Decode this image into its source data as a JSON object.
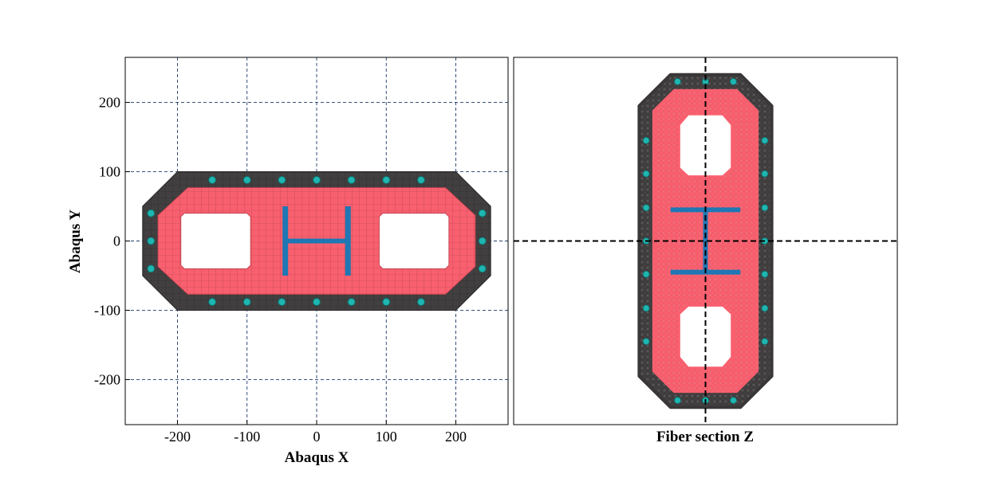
{
  "chart_data": [
    {
      "type": "scatter",
      "panel": "abaqus-mesh",
      "xlabel": "Abaqus X",
      "ylabel": "Abaqus Y",
      "xlim": [
        -275,
        275
      ],
      "ylim": [
        -265,
        265
      ],
      "xticks": [
        -200,
        -100,
        0,
        100,
        200
      ],
      "yticks": [
        -200,
        -100,
        0,
        100,
        200
      ],
      "xtick_labels": [
        "-200",
        "-100",
        "0",
        "100",
        "200"
      ],
      "ytick_labels": [
        "-200",
        "-100",
        "0",
        "100",
        "200"
      ],
      "grid": true,
      "colors": {
        "cover_concrete": "#423f40",
        "core_concrete": "#f8606f",
        "steel_section": "#1f77b4",
        "rebar": "#1fb5b0",
        "grid": "#1f3a6b"
      },
      "outer_section": [
        [
          -200,
          100
        ],
        [
          200,
          100
        ],
        [
          250,
          50
        ],
        [
          250,
          -50
        ],
        [
          200,
          -100
        ],
        [
          -200,
          -100
        ],
        [
          -250,
          -50
        ],
        [
          -250,
          50
        ]
      ],
      "core_region": [
        [
          -185,
          77
        ],
        [
          185,
          77
        ],
        [
          228,
          37
        ],
        [
          228,
          -37
        ],
        [
          185,
          -77
        ],
        [
          -185,
          -77
        ],
        [
          -228,
          -37
        ],
        [
          -228,
          37
        ]
      ],
      "voids": [
        [
          [
            -190,
            40
          ],
          [
            -100,
            40
          ],
          [
            -95,
            35
          ],
          [
            -95,
            -35
          ],
          [
            -100,
            -40
          ],
          [
            -190,
            -40
          ],
          [
            -195,
            -35
          ],
          [
            -195,
            35
          ]
        ],
        [
          [
            95,
            40
          ],
          [
            185,
            40
          ],
          [
            190,
            35
          ],
          [
            190,
            -35
          ],
          [
            185,
            -40
          ],
          [
            95,
            -40
          ],
          [
            90,
            -35
          ],
          [
            90,
            35
          ]
        ]
      ],
      "steel_h_section": {
        "flange_x": [
          -45,
          45
        ],
        "flange_y": [
          -50,
          50
        ],
        "web_y": 0
      },
      "rebars": [
        [
          -150,
          88
        ],
        [
          -100,
          88
        ],
        [
          -50,
          88
        ],
        [
          0,
          88
        ],
        [
          50,
          88
        ],
        [
          100,
          88
        ],
        [
          150,
          88
        ],
        [
          -150,
          -88
        ],
        [
          -100,
          -88
        ],
        [
          -50,
          -88
        ],
        [
          0,
          -88
        ],
        [
          50,
          -88
        ],
        [
          100,
          -88
        ],
        [
          150,
          -88
        ],
        [
          -238,
          40
        ],
        [
          -238,
          0
        ],
        [
          -238,
          -40
        ],
        [
          238,
          40
        ],
        [
          238,
          0
        ],
        [
          238,
          -40
        ]
      ]
    },
    {
      "type": "scatter",
      "panel": "fiber-section",
      "xlabel": "Fiber section Z",
      "ylabel": "",
      "crosshair": {
        "x": 0,
        "y": 0,
        "style": "dashed"
      },
      "xlim": [
        -275,
        275
      ],
      "ylim": [
        -265,
        265
      ],
      "outer_section": [
        [
          -50,
          240
        ],
        [
          50,
          240
        ],
        [
          95,
          195
        ],
        [
          95,
          -195
        ],
        [
          50,
          -240
        ],
        [
          -50,
          -240
        ],
        [
          -95,
          -195
        ],
        [
          -95,
          195
        ]
      ],
      "core_region": [
        [
          -45,
          218
        ],
        [
          45,
          218
        ],
        [
          75,
          188
        ],
        [
          75,
          -188
        ],
        [
          45,
          -218
        ],
        [
          -45,
          -218
        ],
        [
          -75,
          -188
        ],
        [
          -75,
          188
        ]
      ],
      "voids": [
        [
          [
            -25,
            183
          ],
          [
            25,
            183
          ],
          [
            38,
            168
          ],
          [
            38,
            105
          ],
          [
            25,
            93
          ],
          [
            -25,
            93
          ],
          [
            -38,
            105
          ],
          [
            -38,
            168
          ]
        ],
        [
          [
            -25,
            -93
          ],
          [
            25,
            -93
          ],
          [
            38,
            -105
          ],
          [
            38,
            -168
          ],
          [
            25,
            -183
          ],
          [
            -25,
            -183
          ],
          [
            -38,
            -168
          ],
          [
            -38,
            -105
          ]
        ]
      ],
      "steel_h_section": {
        "flange_y": [
          -45,
          45
        ],
        "flange_x": [
          -50,
          50
        ],
        "web_x": 0
      },
      "rebars": [
        [
          -40,
          230
        ],
        [
          0,
          230
        ],
        [
          40,
          230
        ],
        [
          -40,
          -230
        ],
        [
          0,
          -230
        ],
        [
          40,
          -230
        ],
        [
          -85,
          145
        ],
        [
          -85,
          97
        ],
        [
          -85,
          48
        ],
        [
          -85,
          0
        ],
        [
          -85,
          -48
        ],
        [
          -85,
          -97
        ],
        [
          -85,
          -145
        ],
        [
          85,
          145
        ],
        [
          85,
          97
        ],
        [
          85,
          48
        ],
        [
          85,
          0
        ],
        [
          85,
          -48
        ],
        [
          85,
          -97
        ],
        [
          85,
          -145
        ]
      ]
    }
  ]
}
